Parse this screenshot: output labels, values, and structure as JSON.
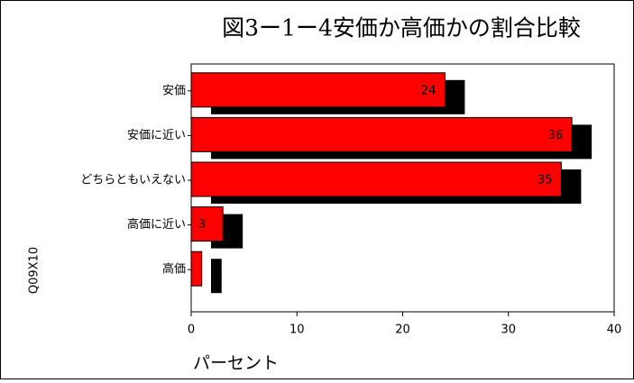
{
  "chart_data": {
    "type": "bar",
    "orientation": "horizontal",
    "title": "図3ー1ー4安価か高価かの割合比較",
    "y_label": "Q09X10",
    "x_label": "パーセント",
    "categories": [
      "安価",
      "安価に近い",
      "どちらともいえない",
      "高価に近い",
      "高価"
    ],
    "values": [
      24,
      36,
      35,
      3,
      1
    ],
    "value_labels": [
      "24",
      "36",
      "35",
      "3",
      null
    ],
    "color": "#ff0000",
    "shadow_color": "#000000",
    "xlim": [
      0,
      40
    ],
    "xticks": [
      0,
      10,
      20,
      30,
      40
    ]
  }
}
